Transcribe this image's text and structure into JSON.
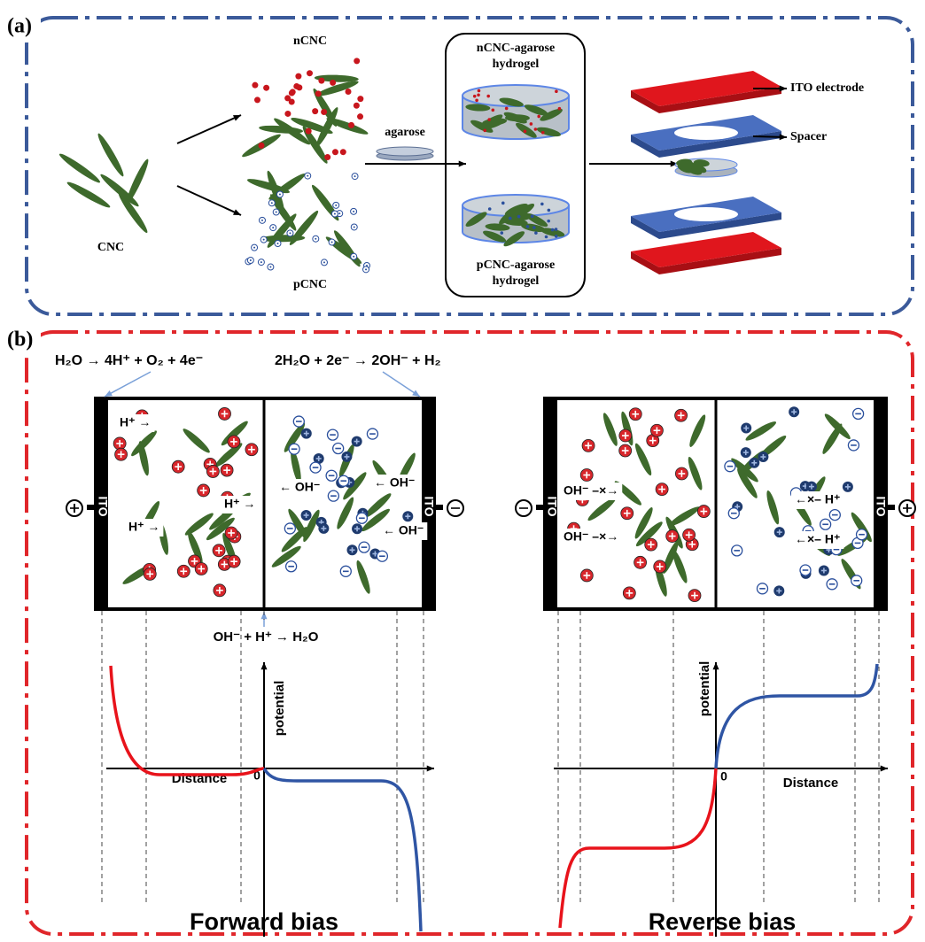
{
  "panel_a": {
    "label": "(a)",
    "cnc": "CNC",
    "ncnc": "nCNC",
    "pcnc": "pCNC",
    "agarose": "agarose",
    "ncnc_gel": [
      "nCNC-agarose",
      "hydrogel"
    ],
    "pcnc_gel": [
      "pCNC-agarose",
      "hydrogel"
    ],
    "ito_electrode": "ITO electrode",
    "spacer": "Spacer"
  },
  "panel_b": {
    "label": "(b)",
    "anode_reaction": "H₂O → 4H⁺ + O₂ + 4e⁻",
    "cathode_reaction": "2H₂O + 2e⁻ → 2OH⁻ + H₂",
    "junction_reaction": "OH⁻ + H⁺ → H₂O",
    "forward": {
      "ion_labels": [
        "H⁺ →",
        "H⁺ →",
        "H⁺ →",
        "← OH⁻",
        "← OH⁻",
        "← OH⁻"
      ],
      "electrodes": [
        "ITO",
        "ITO"
      ],
      "axis_y": "potential",
      "axis_x": "Distance",
      "origin": "0",
      "caption": "Forward bias"
    },
    "reverse": {
      "ion_labels": [
        "OH⁻ –×→",
        "OH⁻ –×→",
        "←×– H⁺",
        "←×– H⁺"
      ],
      "electrodes": [
        "ITO",
        "ITO"
      ],
      "axis_y": "potential",
      "axis_x": "Distance",
      "origin": "0",
      "caption": "Reverse bias"
    }
  }
}
